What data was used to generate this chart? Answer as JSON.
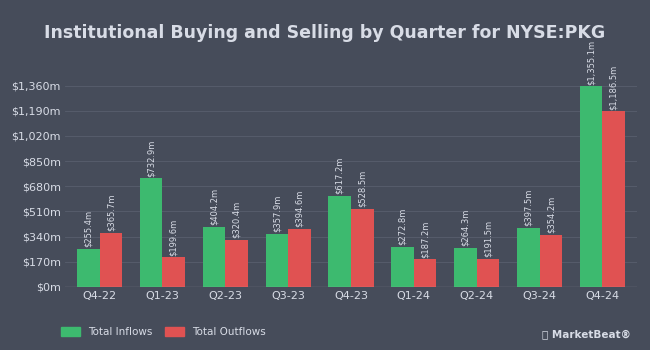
{
  "title": "Institutional Buying and Selling by Quarter for NYSE:PKG",
  "quarters": [
    "Q4-22",
    "Q1-23",
    "Q2-23",
    "Q3-23",
    "Q4-23",
    "Q1-24",
    "Q2-24",
    "Q3-24",
    "Q4-24"
  ],
  "inflows": [
    255.4,
    732.9,
    404.2,
    357.9,
    617.2,
    272.8,
    264.3,
    397.5,
    1355.1
  ],
  "outflows": [
    365.7,
    199.6,
    320.4,
    394.6,
    528.5,
    187.2,
    191.5,
    354.2,
    1186.5
  ],
  "inflow_labels": [
    "$255.4m",
    "$732.9m",
    "$404.2m",
    "$357.9m",
    "$617.2m",
    "$272.8m",
    "$264.3m",
    "$397.5m",
    "$1,355.1m"
  ],
  "outflow_labels": [
    "$365.7m",
    "$199.6m",
    "$320.4m",
    "$394.6m",
    "$528.5m",
    "$187.2m",
    "$191.5m",
    "$354.2m",
    "$1,186.5m"
  ],
  "inflow_color": "#3dba6f",
  "outflow_color": "#e05252",
  "bg_color": "#464c5a",
  "text_color": "#d8dce6",
  "grid_color": "#585f6e",
  "yticks": [
    0,
    170,
    340,
    510,
    680,
    850,
    1020,
    1190,
    1360
  ],
  "ytick_labels": [
    "$0m",
    "$170m",
    "$340m",
    "$510m",
    "$680m",
    "$850m",
    "$1,020m",
    "$1,190m",
    "$1,360m"
  ],
  "ylim": [
    0,
    1560
  ],
  "legend_inflow": "Total Inflows",
  "legend_outflow": "Total Outflows",
  "bar_width": 0.36,
  "label_fontsize": 6.0,
  "title_fontsize": 12.5,
  "tick_fontsize": 8.0
}
